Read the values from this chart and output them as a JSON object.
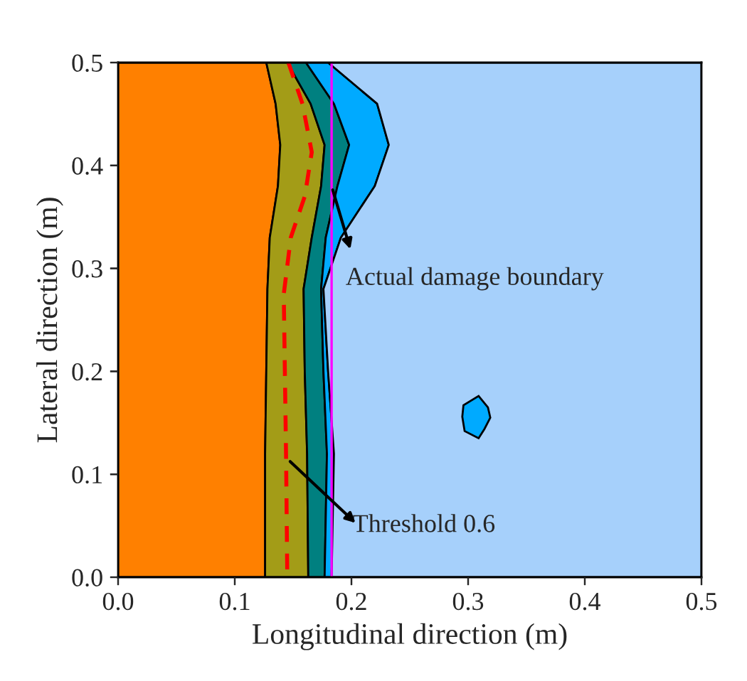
{
  "chart_data": [
    {
      "type": "area",
      "orientation": "horizontal",
      "stacked": true,
      "xlabel": "Longitudinal direction (m)",
      "ylabel": "Lateral direction (m)",
      "xlim": [
        0,
        0.5
      ],
      "ylim": [
        0,
        0.5
      ],
      "xticks": [
        {
          "value": 0,
          "label": "0.0"
        },
        {
          "value": 0.1,
          "label": "0.1"
        },
        {
          "value": 0.2,
          "label": "0.2"
        },
        {
          "value": 0.3,
          "label": "0.3"
        },
        {
          "value": 0.4,
          "label": "0.4"
        },
        {
          "value": 0.5,
          "label": "0.5"
        }
      ],
      "yticks": [
        {
          "value": 0,
          "label": "0.0"
        },
        {
          "value": 0.1,
          "label": "0.1"
        },
        {
          "value": 0.2,
          "label": "0.2"
        },
        {
          "value": 0.3,
          "label": "0.3"
        },
        {
          "value": 0.4,
          "label": "0.4"
        },
        {
          "value": 0.5,
          "label": "0.5"
        }
      ],
      "x": [
        0.5,
        0.46,
        0.42,
        0.38,
        0.33,
        0.28,
        0.2,
        0.12,
        0
      ],
      "series": [
        {
          "color": "#ff8000",
          "values": [
            0.127,
            0.135,
            0.139,
            0.137,
            0.13,
            0.128,
            0.127,
            0.126,
            0.126
          ]
        },
        {
          "color": "#a39c17",
          "values": [
            0.018,
            0.03,
            0.038,
            0.037,
            0.036,
            0.031,
            0.033,
            0.036,
            0.037
          ]
        },
        {
          "color": "#008080",
          "values": [
            0.016,
            0.02,
            0.021,
            0.014,
            0.012,
            0.015,
            0.016,
            0.017,
            0.014
          ]
        },
        {
          "color": "#00aaff",
          "values": [
            0.019,
            0.037,
            0.034,
            0.032,
            0.013,
            0.002,
            0.004,
            0.006,
            0.006
          ]
        },
        {
          "color": "#a6d0fb",
          "values": [
            0.32,
            0.278,
            0.268,
            0.28,
            0.309,
            0.324,
            0.32,
            0.315,
            0.317
          ]
        },
        {
          "type": "line",
          "color": "#ff0000",
          "line_style": "dashed",
          "x": [
            0.5,
            0.46,
            0.413,
            0.37,
            0.33,
            0.275,
            0.115,
            0
          ],
          "values": [
            0.146,
            0.158,
            0.166,
            0.16,
            0.148,
            0.142,
            0.144,
            0.145
          ]
        }
      ],
      "ref_lines": [
        {
          "axis": "x",
          "value": 0.183,
          "color": "#ff00ff"
        }
      ],
      "annotations": [
        {
          "text": "Actual damage boundary",
          "x": 0.183,
          "y": 0.38
        },
        {
          "text": "Threshold 0.6",
          "x": 0.145,
          "y": 0.115
        }
      ]
    },
    {
      "type": "area",
      "orientation": "horizontal",
      "xlim": [
        0,
        0.5
      ],
      "ylim": [
        0,
        0.5
      ],
      "tick_labels": false,
      "xticks": [
        0,
        0.1,
        0.2,
        0.3,
        0.4,
        0.5
      ],
      "yticks": [
        0,
        0.1,
        0.2,
        0.3,
        0.4,
        0.5
      ],
      "series": [
        {
          "color": "#00aaff",
          "x": [
            0.176,
            0.165,
            0.155,
            0.144,
            0.135,
            0.142,
            0.156,
            0.167,
            0.176
          ],
          "values": [
            0.309,
            0.317,
            0.319,
            0.314,
            0.309,
            0.297,
            0.295,
            0.296,
            0.309
          ]
        }
      ]
    }
  ]
}
